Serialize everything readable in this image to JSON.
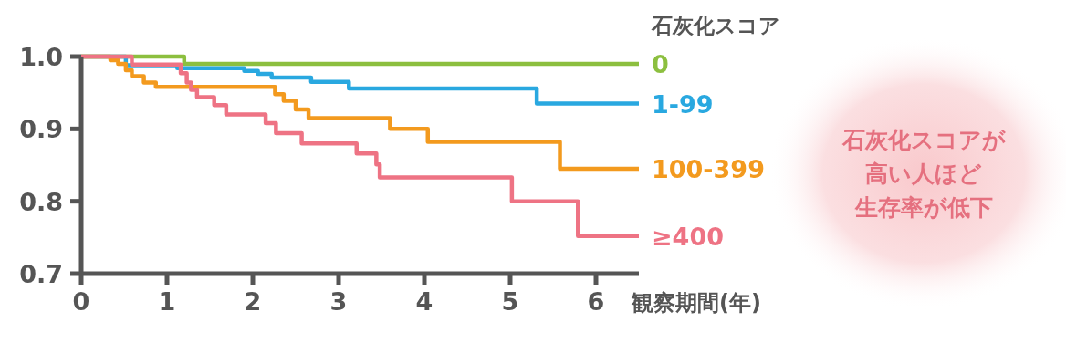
{
  "chart_data": {
    "type": "step",
    "xlabel": "観察期間(年)",
    "legend_title": "石灰化スコア",
    "legend": "right",
    "xlim": [
      0,
      6.5
    ],
    "xticks": [
      0,
      1,
      2,
      3,
      4,
      5,
      6
    ],
    "ylim": [
      0.7,
      1.0
    ],
    "yticks": [
      0.7,
      0.8,
      0.9,
      {
        "value": 1.0,
        "label": "1.0"
      }
    ],
    "grid": false,
    "marker": "none",
    "line_style": "solid",
    "series": [
      {
        "name": "0",
        "color": "#8cbf3f",
        "x": [
          0,
          1.2,
          6.5
        ],
        "values": [
          1.0,
          0.99,
          0.99
        ]
      },
      {
        "name": "1-99",
        "color": "#29a8e0",
        "x": [
          0,
          0.52,
          1.12,
          1.9,
          2.06,
          2.22,
          2.68,
          3.12,
          5.31,
          6.5
        ],
        "values": [
          1.0,
          0.988,
          0.984,
          0.98,
          0.976,
          0.971,
          0.965,
          0.956,
          0.935,
          0.935
        ]
      },
      {
        "name": "100-399",
        "color": "#f39a1e",
        "x": [
          0,
          0.34,
          0.43,
          0.52,
          0.59,
          0.73,
          0.87,
          2.26,
          2.36,
          2.5,
          2.65,
          3.6,
          4.04,
          5.58,
          6.5
        ],
        "values": [
          1.0,
          0.995,
          0.99,
          0.981,
          0.973,
          0.964,
          0.958,
          0.948,
          0.939,
          0.927,
          0.915,
          0.9,
          0.882,
          0.845,
          0.845
        ]
      },
      {
        "name": "≥400",
        "color": "#ee7384",
        "x": [
          0,
          0.59,
          1.16,
          1.23,
          1.28,
          1.35,
          1.55,
          1.69,
          2.15,
          2.27,
          2.57,
          3.21,
          3.44,
          3.48,
          5.02,
          5.79,
          6.5
        ],
        "values": [
          1.0,
          0.989,
          0.977,
          0.964,
          0.954,
          0.944,
          0.933,
          0.92,
          0.908,
          0.894,
          0.88,
          0.866,
          0.851,
          0.833,
          0.8,
          0.752,
          0.752
        ]
      }
    ],
    "annotations": [
      "石灰化スコアが",
      "高い人ほど",
      "生存率が低下"
    ]
  }
}
